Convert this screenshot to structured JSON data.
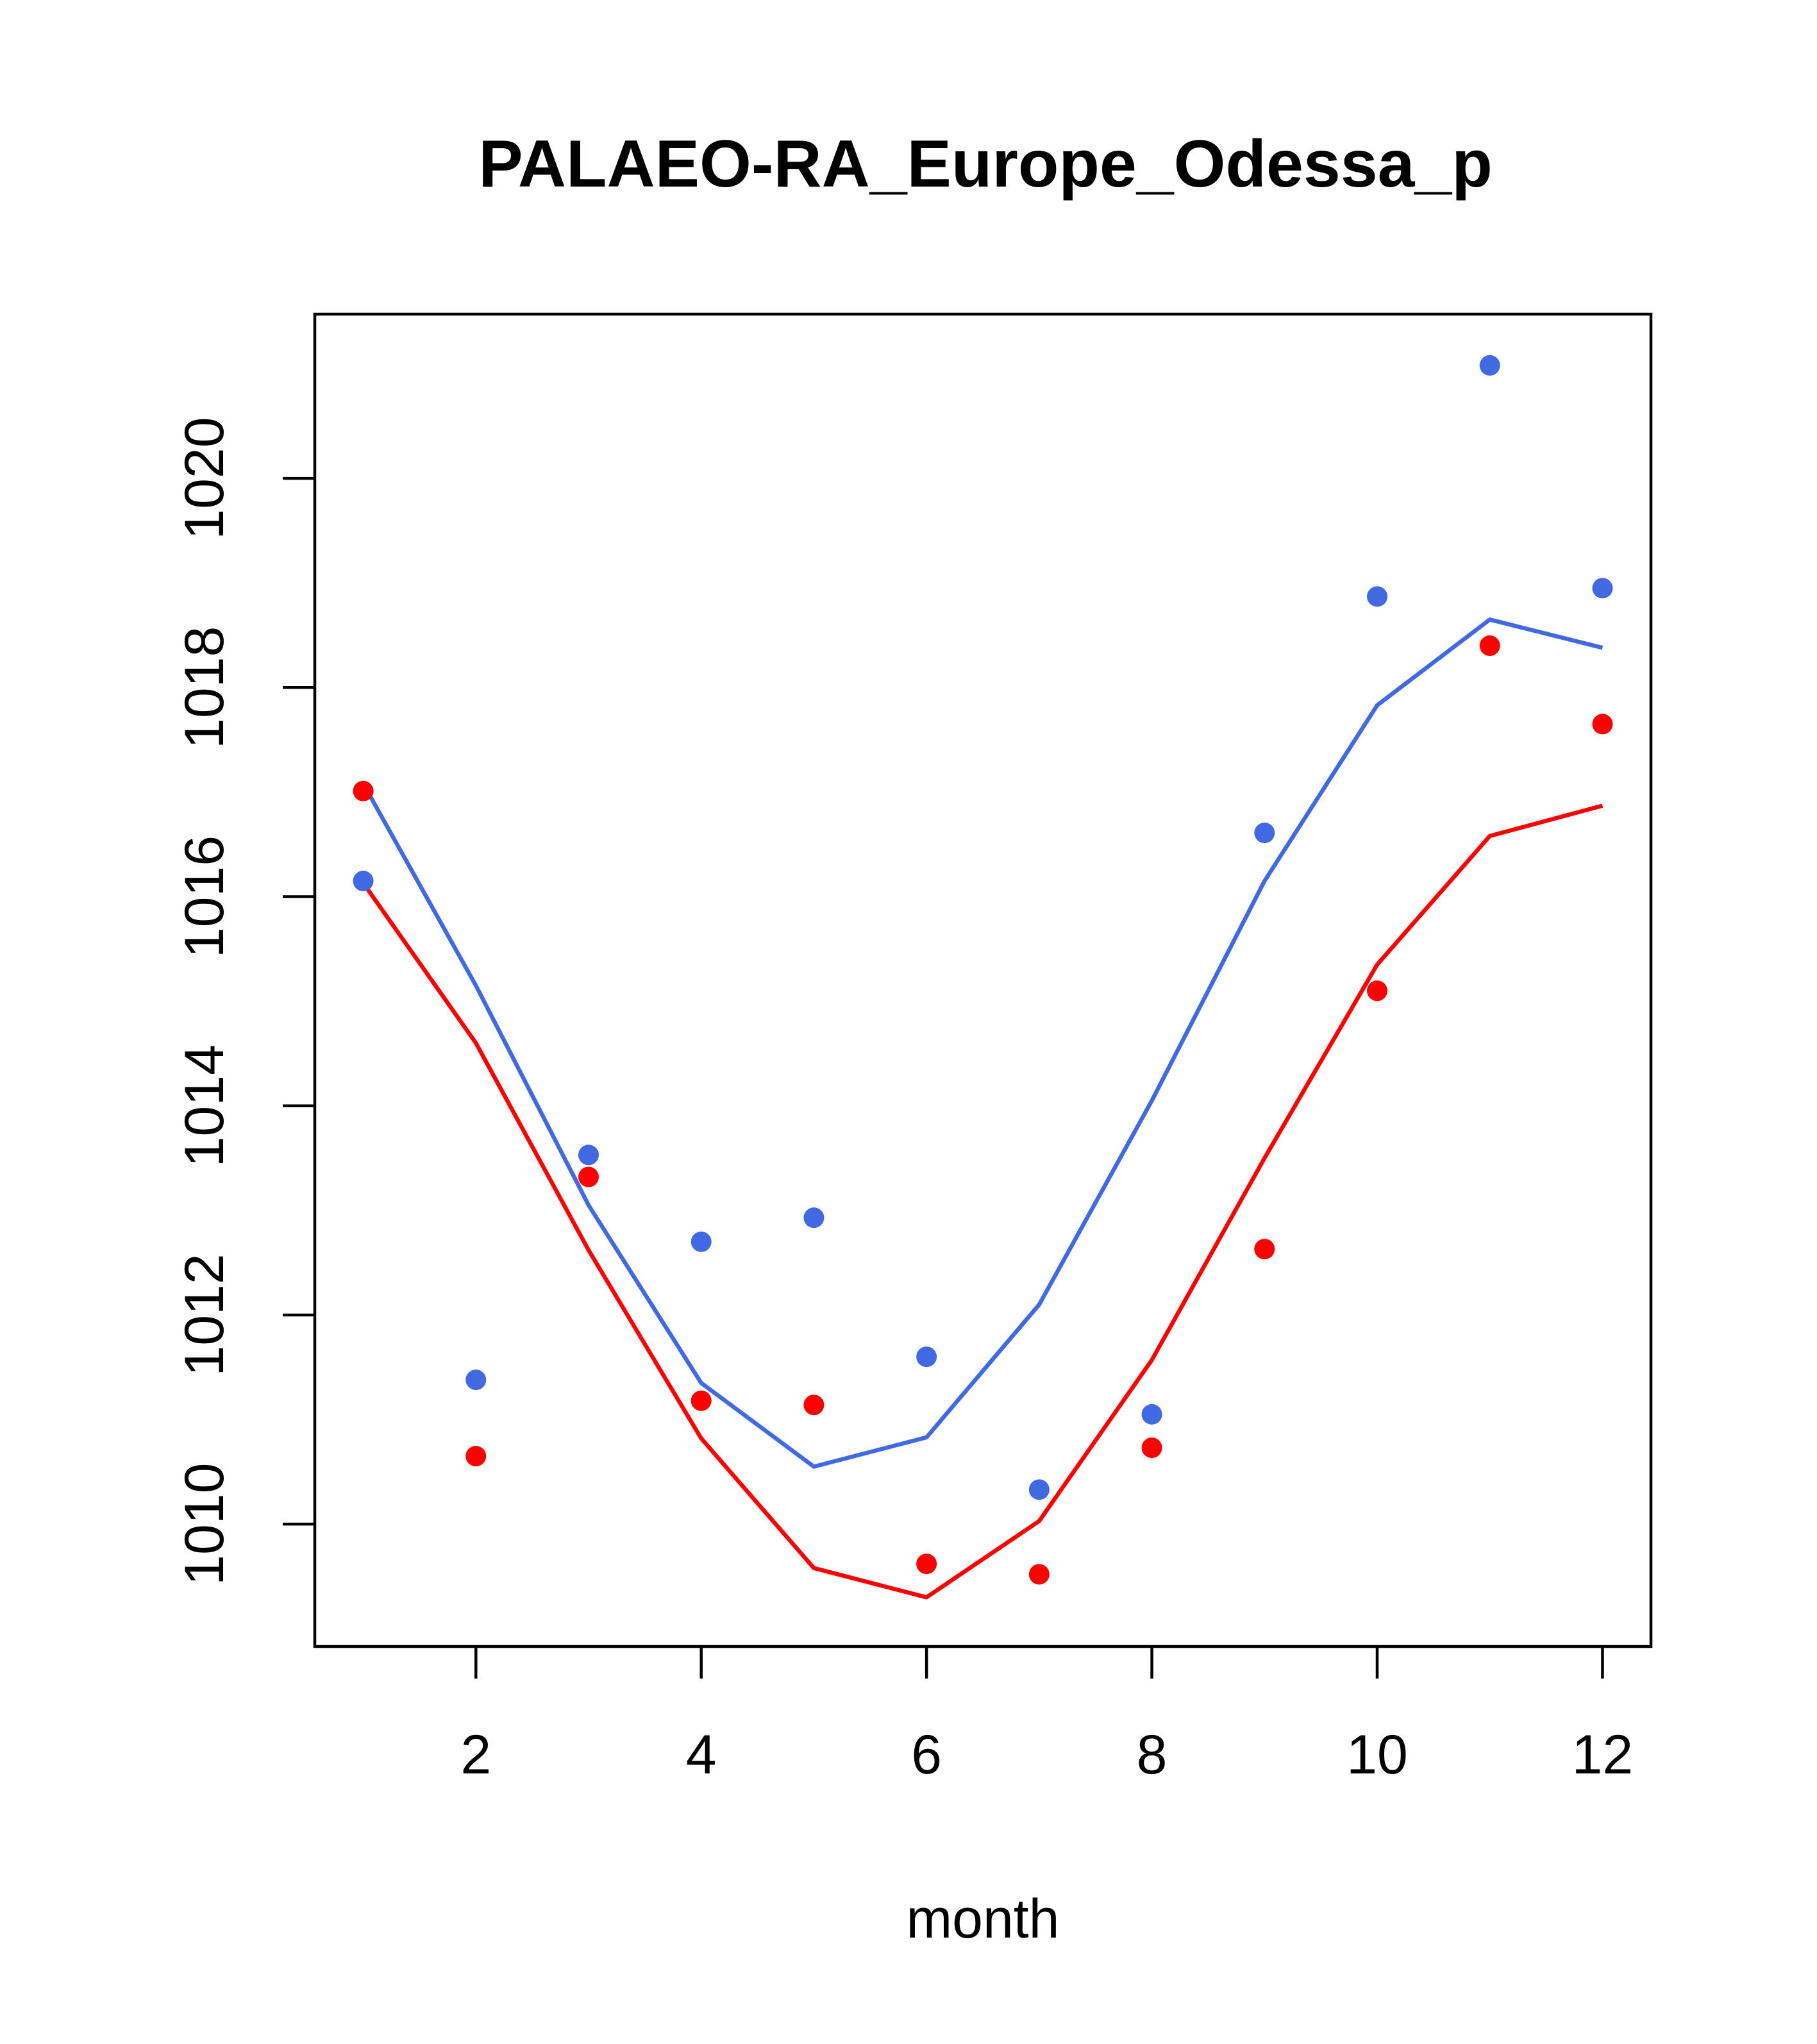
{
  "chart_data": {
    "type": "line",
    "title": "PALAEO-RA_Europe_Odessa_p",
    "xlabel": "month",
    "ylabel": "",
    "xlim": [
      0.57,
      12.43
    ],
    "ylim": [
      1008.83,
      1021.57
    ],
    "x_ticks": [
      2,
      4,
      6,
      8,
      10,
      12
    ],
    "y_ticks": [
      1010,
      1012,
      1014,
      1016,
      1018,
      1020
    ],
    "x_tick_labels": [
      "2",
      "4",
      "6",
      "8",
      "10",
      "12"
    ],
    "y_tick_labels": [
      "1010",
      "1012",
      "1014",
      "1016",
      "1018",
      "1020"
    ],
    "grid": false,
    "series": [
      {
        "name": "blue-points",
        "kind": "points",
        "color": "#4169E1",
        "x": [
          1,
          2,
          3,
          4,
          5,
          6,
          7,
          8,
          9,
          10,
          11,
          12
        ],
        "y": [
          1016.15,
          1011.38,
          1013.53,
          1012.7,
          1012.93,
          1011.6,
          1010.33,
          1011.05,
          1016.61,
          1018.87,
          1021.08,
          1018.95
        ]
      },
      {
        "name": "red-points",
        "kind": "points",
        "color": "#FF0000",
        "x": [
          1,
          2,
          3,
          4,
          5,
          6,
          7,
          8,
          9,
          10,
          11,
          12
        ],
        "y": [
          1017.01,
          1010.65,
          1013.32,
          1011.18,
          1011.14,
          1009.62,
          1009.52,
          1010.73,
          1012.63,
          1015.1,
          1018.4,
          1017.65
        ]
      },
      {
        "name": "blue-line",
        "kind": "line",
        "color": "#4169E1",
        "x": [
          1,
          2,
          3,
          4,
          5,
          6,
          7,
          8,
          9,
          10,
          11,
          12
        ],
        "y": [
          1017.08,
          1015.15,
          1013.05,
          1011.35,
          1010.55,
          1010.83,
          1012.1,
          1014.05,
          1016.15,
          1017.83,
          1018.65,
          1018.38
        ]
      },
      {
        "name": "red-line",
        "kind": "line",
        "color": "#FF0000",
        "x": [
          1,
          2,
          3,
          4,
          5,
          6,
          7,
          8,
          9,
          10,
          11,
          12
        ],
        "y": [
          1016.13,
          1014.6,
          1012.62,
          1010.82,
          1009.58,
          1009.3,
          1010.03,
          1011.57,
          1013.5,
          1015.35,
          1016.58,
          1016.87
        ]
      }
    ]
  }
}
